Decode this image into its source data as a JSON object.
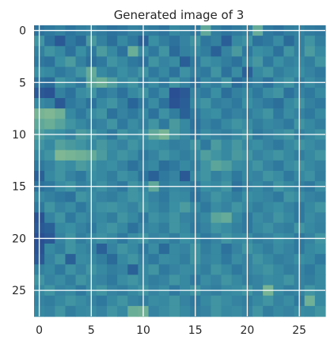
{
  "chart_data": {
    "type": "heatmap",
    "title": "Generated image of 3",
    "xlabel": "",
    "ylabel": "",
    "rows": 28,
    "cols": 28,
    "x_ticks": [
      0,
      5,
      10,
      15,
      20,
      25
    ],
    "y_ticks": [
      0,
      5,
      10,
      15,
      20,
      25
    ],
    "xlim": [
      -0.5,
      27.5
    ],
    "ylim": [
      27.5,
      -0.5
    ],
    "grid": true,
    "legend": "none",
    "colormap": [
      "#2a3d8f",
      "#2a6b9a",
      "#3a8fa3",
      "#5fa89a",
      "#9cc58e"
    ],
    "values": [
      [
        0.3,
        0.35,
        0.4,
        0.32,
        0.38,
        0.42,
        0.36,
        0.3,
        0.33,
        0.41,
        0.39,
        0.36,
        0.31,
        0.45,
        0.4,
        0.35,
        0.75,
        0.38,
        0.32,
        0.36,
        0.4,
        0.78,
        0.35,
        0.3,
        0.38,
        0.41,
        0.36,
        0.33
      ],
      [
        0.55,
        0.3,
        0.15,
        0.35,
        0.25,
        0.6,
        0.4,
        0.28,
        0.45,
        0.35,
        0.2,
        0.5,
        0.38,
        0.3,
        0.42,
        0.55,
        0.33,
        0.4,
        0.18,
        0.45,
        0.52,
        0.3,
        0.35,
        0.47,
        0.25,
        0.4,
        0.55,
        0.38
      ],
      [
        0.4,
        0.55,
        0.45,
        0.3,
        0.5,
        0.35,
        0.62,
        0.45,
        0.3,
        0.8,
        0.48,
        0.35,
        0.55,
        0.25,
        0.4,
        0.45,
        0.38,
        0.2,
        0.42,
        0.6,
        0.35,
        0.5,
        0.45,
        0.3,
        0.55,
        0.4,
        0.62,
        0.45
      ],
      [
        0.35,
        0.3,
        0.5,
        0.62,
        0.4,
        0.28,
        0.35,
        0.55,
        0.45,
        0.35,
        0.3,
        0.55,
        0.42,
        0.48,
        0.18,
        0.35,
        0.52,
        0.45,
        0.38,
        0.3,
        0.45,
        0.58,
        0.35,
        0.5,
        0.4,
        0.45,
        0.38,
        0.55
      ],
      [
        0.5,
        0.45,
        0.35,
        0.42,
        0.55,
        0.78,
        0.45,
        0.38,
        0.5,
        0.42,
        0.55,
        0.35,
        0.45,
        0.3,
        0.52,
        0.4,
        0.35,
        0.55,
        0.3,
        0.48,
        0.2,
        0.45,
        0.55,
        0.38,
        0.45,
        0.5,
        0.42,
        0.35
      ],
      [
        0.3,
        0.25,
        0.55,
        0.45,
        0.35,
        0.72,
        0.8,
        0.65,
        0.45,
        0.55,
        0.38,
        0.48,
        0.35,
        0.55,
        0.42,
        0.3,
        0.45,
        0.38,
        0.55,
        0.25,
        0.35,
        0.42,
        0.3,
        0.45,
        0.55,
        0.38,
        0.48,
        0.4
      ],
      [
        0.15,
        0.12,
        0.4,
        0.3,
        0.48,
        0.55,
        0.35,
        0.42,
        0.3,
        0.45,
        0.55,
        0.35,
        0.48,
        0.1,
        0.15,
        0.42,
        0.35,
        0.5,
        0.28,
        0.4,
        0.45,
        0.35,
        0.48,
        0.55,
        0.3,
        0.42,
        0.35,
        0.45
      ],
      [
        0.45,
        0.4,
        0.15,
        0.35,
        0.42,
        0.3,
        0.45,
        0.55,
        0.4,
        0.22,
        0.35,
        0.48,
        0.3,
        0.12,
        0.18,
        0.45,
        0.55,
        0.38,
        0.42,
        0.35,
        0.5,
        0.42,
        0.35,
        0.28,
        0.45,
        0.55,
        0.4,
        0.35
      ],
      [
        0.85,
        0.88,
        0.82,
        0.45,
        0.35,
        0.48,
        0.55,
        0.3,
        0.42,
        0.35,
        0.45,
        0.3,
        0.52,
        0.38,
        0.2,
        0.35,
        0.45,
        0.5,
        0.35,
        0.42,
        0.38,
        0.45,
        0.55,
        0.35,
        0.48,
        0.42,
        0.35,
        0.45
      ],
      [
        0.75,
        0.8,
        0.7,
        0.55,
        0.45,
        0.38,
        0.42,
        0.55,
        0.35,
        0.48,
        0.4,
        0.55,
        0.35,
        0.6,
        0.45,
        0.3,
        0.42,
        0.35,
        0.45,
        0.55,
        0.48,
        0.38,
        0.45,
        0.42,
        0.35,
        0.55,
        0.45,
        0.38
      ],
      [
        0.65,
        0.55,
        0.5,
        0.42,
        0.62,
        0.55,
        0.45,
        0.35,
        0.55,
        0.45,
        0.52,
        0.75,
        0.85,
        0.58,
        0.45,
        0.35,
        0.48,
        0.42,
        0.38,
        0.45,
        0.55,
        0.35,
        0.42,
        0.48,
        0.55,
        0.4,
        0.45,
        0.52
      ],
      [
        0.55,
        0.45,
        0.68,
        0.6,
        0.55,
        0.45,
        0.58,
        0.48,
        0.42,
        0.55,
        0.45,
        0.5,
        0.45,
        0.38,
        0.42,
        0.55,
        0.35,
        0.62,
        0.45,
        0.58,
        0.45,
        0.5,
        0.42,
        0.35,
        0.45,
        0.55,
        0.48,
        0.42
      ],
      [
        0.45,
        0.55,
        0.88,
        0.85,
        0.82,
        0.78,
        0.62,
        0.45,
        0.55,
        0.48,
        0.35,
        0.42,
        0.55,
        0.45,
        0.38,
        0.45,
        0.65,
        0.55,
        0.45,
        0.6,
        0.55,
        0.42,
        0.48,
        0.55,
        0.45,
        0.38,
        0.45,
        0.55
      ],
      [
        0.35,
        0.42,
        0.55,
        0.48,
        0.62,
        0.55,
        0.45,
        0.5,
        0.42,
        0.3,
        0.4,
        0.45,
        0.28,
        0.35,
        0.45,
        0.38,
        0.55,
        0.72,
        0.65,
        0.48,
        0.45,
        0.55,
        0.42,
        0.35,
        0.48,
        0.55,
        0.45,
        0.4
      ],
      [
        0.2,
        0.45,
        0.55,
        0.42,
        0.35,
        0.5,
        0.45,
        0.38,
        0.52,
        0.45,
        0.32,
        0.2,
        0.35,
        0.42,
        0.15,
        0.45,
        0.55,
        0.4,
        0.48,
        0.35,
        0.45,
        0.42,
        0.55,
        0.48,
        0.35,
        0.45,
        0.52,
        0.38
      ],
      [
        0.3,
        0.35,
        0.48,
        0.55,
        0.4,
        0.45,
        0.52,
        0.42,
        0.35,
        0.55,
        0.45,
        0.75,
        0.38,
        0.45,
        0.42,
        0.35,
        0.5,
        0.45,
        0.55,
        0.3,
        0.42,
        0.45,
        0.38,
        0.55,
        0.45,
        0.4,
        0.35,
        0.48
      ],
      [
        0.45,
        0.4,
        0.35,
        0.3,
        0.55,
        0.48,
        0.42,
        0.38,
        0.45,
        0.55,
        0.5,
        0.42,
        0.35,
        0.48,
        0.45,
        0.3,
        0.42,
        0.55,
        0.45,
        0.38,
        0.5,
        0.45,
        0.42,
        0.35,
        0.55,
        0.48,
        0.42,
        0.38
      ],
      [
        0.35,
        0.55,
        0.42,
        0.48,
        0.35,
        0.45,
        0.52,
        0.55,
        0.48,
        0.42,
        0.55,
        0.45,
        0.38,
        0.5,
        0.62,
        0.45,
        0.35,
        0.48,
        0.42,
        0.55,
        0.45,
        0.38,
        0.45,
        0.5,
        0.42,
        0.35,
        0.45,
        0.55
      ],
      [
        0.12,
        0.42,
        0.55,
        0.35,
        0.48,
        0.42,
        0.45,
        0.38,
        0.55,
        0.45,
        0.35,
        0.52,
        0.45,
        0.55,
        0.42,
        0.38,
        0.45,
        0.72,
        0.78,
        0.45,
        0.35,
        0.48,
        0.42,
        0.55,
        0.45,
        0.35,
        0.48,
        0.42
      ],
      [
        0.15,
        0.2,
        0.45,
        0.5,
        0.42,
        0.35,
        0.48,
        0.55,
        0.45,
        0.3,
        0.42,
        0.45,
        0.38,
        0.55,
        0.45,
        0.35,
        0.42,
        0.55,
        0.48,
        0.4,
        0.35,
        0.45,
        0.52,
        0.42,
        0.38,
        0.55,
        0.45,
        0.4
      ],
      [
        0.1,
        0.15,
        0.42,
        0.55,
        0.38,
        0.45,
        0.52,
        0.45,
        0.35,
        0.48,
        0.55,
        0.42,
        0.45,
        0.38,
        0.5,
        0.45,
        0.35,
        0.42,
        0.55,
        0.45,
        0.48,
        0.38,
        0.42,
        0.5,
        0.45,
        0.35,
        0.42,
        0.55
      ],
      [
        0.12,
        0.45,
        0.38,
        0.55,
        0.45,
        0.4,
        0.2,
        0.42,
        0.55,
        0.45,
        0.35,
        0.48,
        0.25,
        0.45,
        0.42,
        0.55,
        0.38,
        0.45,
        0.3,
        0.42,
        0.55,
        0.45,
        0.38,
        0.48,
        0.42,
        0.35,
        0.45,
        0.5
      ],
      [
        0.15,
        0.42,
        0.55,
        0.2,
        0.48,
        0.45,
        0.38,
        0.25,
        0.45,
        0.55,
        0.42,
        0.35,
        0.48,
        0.45,
        0.38,
        0.55,
        0.42,
        0.45,
        0.35,
        0.48,
        0.42,
        0.55,
        0.45,
        0.38,
        0.42,
        0.5,
        0.45,
        0.35
      ],
      [
        0.4,
        0.45,
        0.35,
        0.52,
        0.42,
        0.55,
        0.45,
        0.38,
        0.42,
        0.2,
        0.45,
        0.55,
        0.35,
        0.42,
        0.48,
        0.45,
        0.38,
        0.55,
        0.45,
        0.35,
        0.42,
        0.48,
        0.55,
        0.45,
        0.38,
        0.42,
        0.35,
        0.45
      ],
      [
        0.55,
        0.42,
        0.48,
        0.38,
        0.55,
        0.45,
        0.42,
        0.35,
        0.48,
        0.55,
        0.45,
        0.38,
        0.42,
        0.55,
        0.45,
        0.35,
        0.48,
        0.42,
        0.55,
        0.45,
        0.38,
        0.42,
        0.48,
        0.45,
        0.55,
        0.42,
        0.38,
        0.45
      ],
      [
        0.45,
        0.55,
        0.42,
        0.45,
        0.35,
        0.48,
        0.55,
        0.42,
        0.38,
        0.45,
        0.55,
        0.42,
        0.48,
        0.35,
        0.45,
        0.55,
        0.42,
        0.38,
        0.45,
        0.48,
        0.55,
        0.42,
        0.85,
        0.45,
        0.38,
        0.42,
        0.55,
        0.45
      ],
      [
        0.42,
        0.38,
        0.45,
        0.55,
        0.48,
        0.42,
        0.35,
        0.45,
        0.55,
        0.42,
        0.38,
        0.48,
        0.45,
        0.55,
        0.42,
        0.35,
        0.45,
        0.55,
        0.48,
        0.42,
        0.38,
        0.45,
        0.55,
        0.42,
        0.48,
        0.35,
        0.82,
        0.45
      ],
      [
        0.45,
        0.42,
        0.55,
        0.38,
        0.45,
        0.48,
        0.42,
        0.55,
        0.45,
        0.8,
        0.82,
        0.42,
        0.48,
        0.55,
        0.45,
        0.38,
        0.42,
        0.55,
        0.45,
        0.48,
        0.42,
        0.55,
        0.38,
        0.45,
        0.42,
        0.48,
        0.45,
        0.55
      ]
    ]
  }
}
